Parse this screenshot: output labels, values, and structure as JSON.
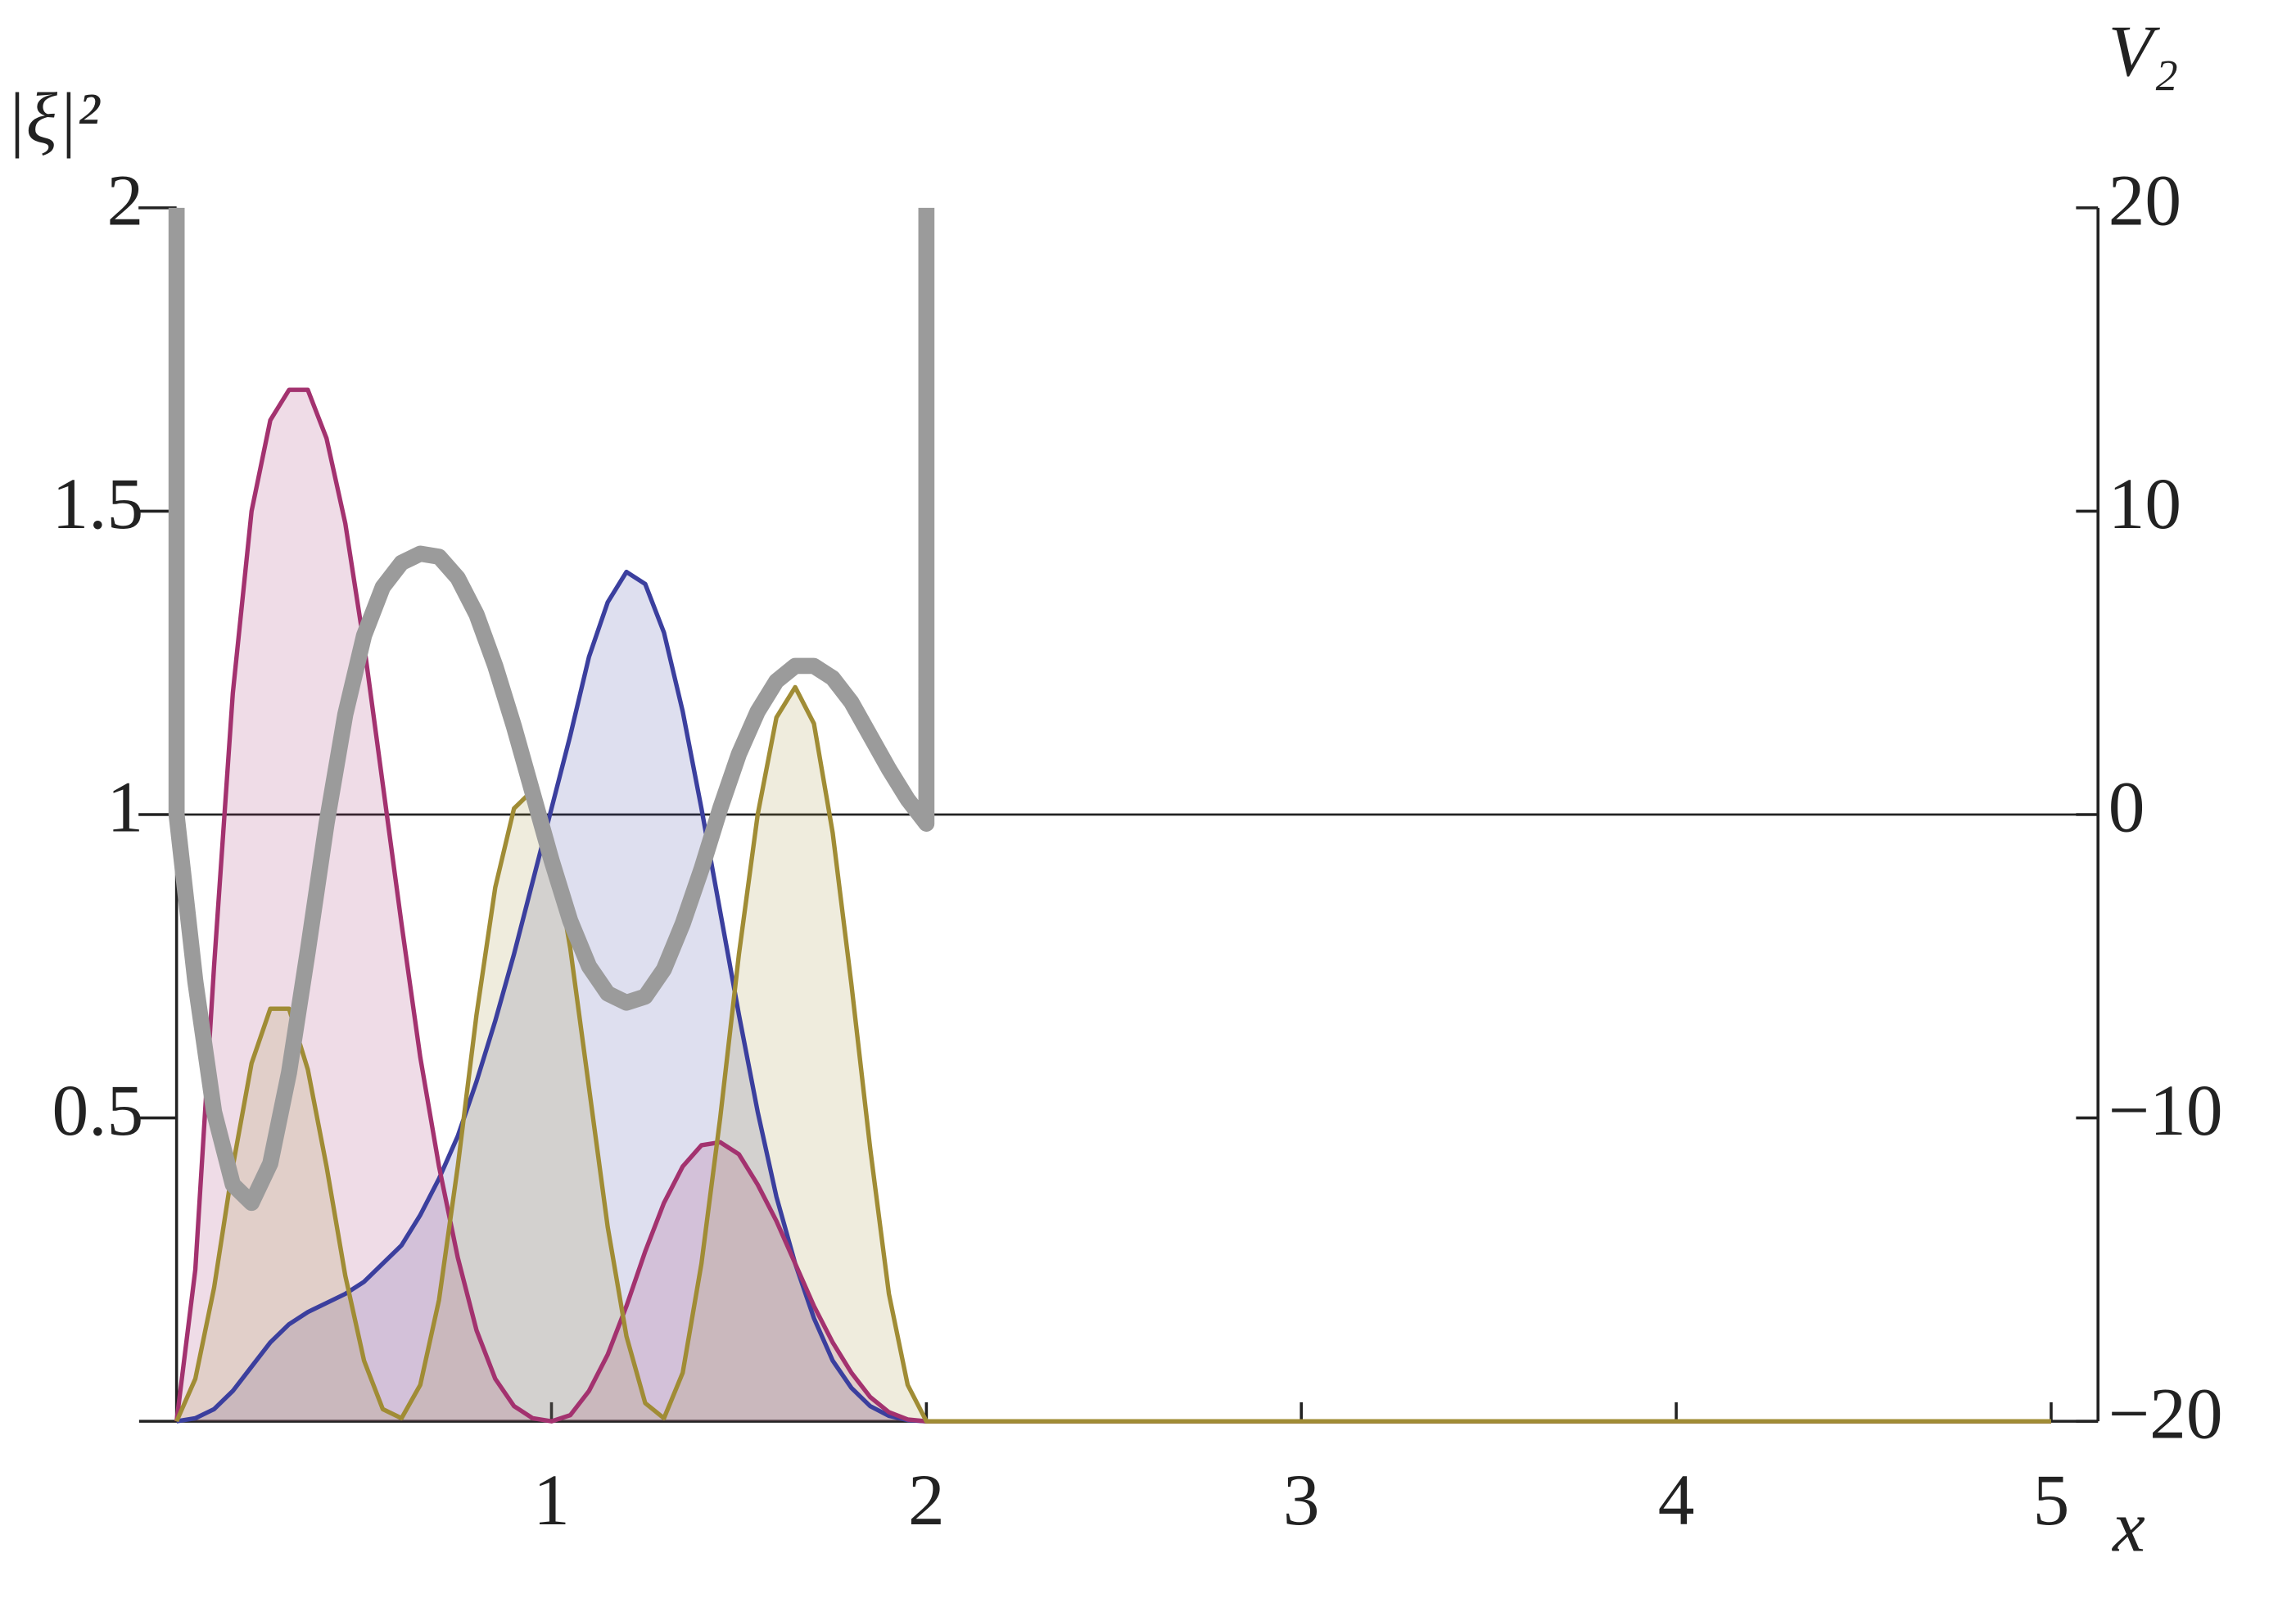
{
  "chart_data": {
    "type": "line",
    "ylabel": "|ξ|²",
    "y2_label": "V₂",
    "xlabel": "x",
    "xlim": [
      -0.1,
      5.125
    ],
    "ylim": [
      0,
      2
    ],
    "y2lim": [
      -20,
      20
    ],
    "xticks": [
      1,
      2,
      3,
      4,
      5
    ],
    "yticks": [
      0.5,
      1,
      1.5,
      2
    ],
    "y2ticks": [
      {
        "value": -20,
        "label": "−20"
      },
      {
        "value": -10,
        "label": "−10"
      },
      0,
      10,
      20
    ],
    "hline_y2": 0,
    "fill": true,
    "x": [
      0,
      0.05,
      0.1,
      0.15,
      0.2,
      0.25,
      0.3,
      0.35,
      0.4,
      0.45,
      0.5,
      0.55,
      0.6,
      0.65,
      0.7,
      0.75,
      0.8,
      0.85,
      0.9,
      0.95,
      1.0,
      1.05,
      1.1,
      1.15,
      1.2,
      1.25,
      1.3,
      1.35,
      1.4,
      1.45,
      1.5,
      1.55,
      1.6,
      1.65,
      1.7,
      1.75,
      1.8,
      1.85,
      1.9,
      1.95,
      2.0,
      5
    ],
    "series": [
      {
        "color": "#3b3f9e",
        "values": [
          0,
          0.005,
          0.02,
          0.05,
          0.09,
          0.13,
          0.16,
          0.18,
          0.195,
          0.21,
          0.23,
          0.26,
          0.29,
          0.34,
          0.4,
          0.47,
          0.56,
          0.66,
          0.77,
          0.89,
          1.01,
          1.13,
          1.26,
          1.35,
          1.4,
          1.38,
          1.3,
          1.17,
          1.01,
          0.84,
          0.67,
          0.51,
          0.37,
          0.26,
          0.17,
          0.1,
          0.055,
          0.025,
          0.009,
          0.002,
          0,
          0
        ]
      },
      {
        "color": "#a3326f",
        "values": [
          0,
          0.25,
          0.75,
          1.2,
          1.5,
          1.65,
          1.7,
          1.7,
          1.62,
          1.48,
          1.28,
          1.05,
          0.82,
          0.6,
          0.42,
          0.27,
          0.15,
          0.07,
          0.025,
          0.005,
          0,
          0.01,
          0.05,
          0.11,
          0.19,
          0.28,
          0.36,
          0.42,
          0.455,
          0.46,
          0.44,
          0.39,
          0.33,
          0.26,
          0.19,
          0.13,
          0.08,
          0.04,
          0.015,
          0.003,
          0,
          0
        ]
      },
      {
        "color": "#a08c35",
        "values": [
          0,
          0.07,
          0.22,
          0.42,
          0.59,
          0.68,
          0.68,
          0.58,
          0.42,
          0.24,
          0.1,
          0.02,
          0.005,
          0.06,
          0.2,
          0.42,
          0.67,
          0.88,
          1.01,
          1.04,
          0.96,
          0.78,
          0.55,
          0.32,
          0.14,
          0.03,
          0.005,
          0.08,
          0.26,
          0.5,
          0.77,
          1.0,
          1.16,
          1.21,
          1.15,
          0.97,
          0.72,
          0.45,
          0.21,
          0.06,
          0,
          0
        ]
      },
      {
        "color": "#9b9b9b",
        "axis": "y2",
        "x": [
          0,
          0,
          0.05,
          0.1,
          0.15,
          0.2,
          0.25,
          0.3,
          0.35,
          0.4,
          0.45,
          0.5,
          0.55,
          0.6,
          0.65,
          0.7,
          0.75,
          0.8,
          0.85,
          0.9,
          0.95,
          1.0,
          1.05,
          1.1,
          1.15,
          1.2,
          1.25,
          1.3,
          1.35,
          1.4,
          1.45,
          1.5,
          1.55,
          1.6,
          1.65,
          1.7,
          1.75,
          1.8,
          1.85,
          1.9,
          1.95,
          2.0,
          2.0
        ],
        "values": [
          20,
          0,
          -5.5,
          -9.8,
          -12.2,
          -12.8,
          -11.5,
          -8.5,
          -4.5,
          -0.3,
          3.3,
          5.9,
          7.5,
          8.3,
          8.6,
          8.5,
          7.8,
          6.6,
          4.9,
          2.9,
          0.7,
          -1.5,
          -3.5,
          -5.0,
          -5.9,
          -6.2,
          -6.0,
          -5.1,
          -3.6,
          -1.8,
          0.2,
          2.0,
          3.4,
          4.4,
          4.9,
          4.9,
          4.5,
          3.7,
          2.6,
          1.5,
          0.5,
          -0.3,
          20
        ]
      }
    ]
  }
}
